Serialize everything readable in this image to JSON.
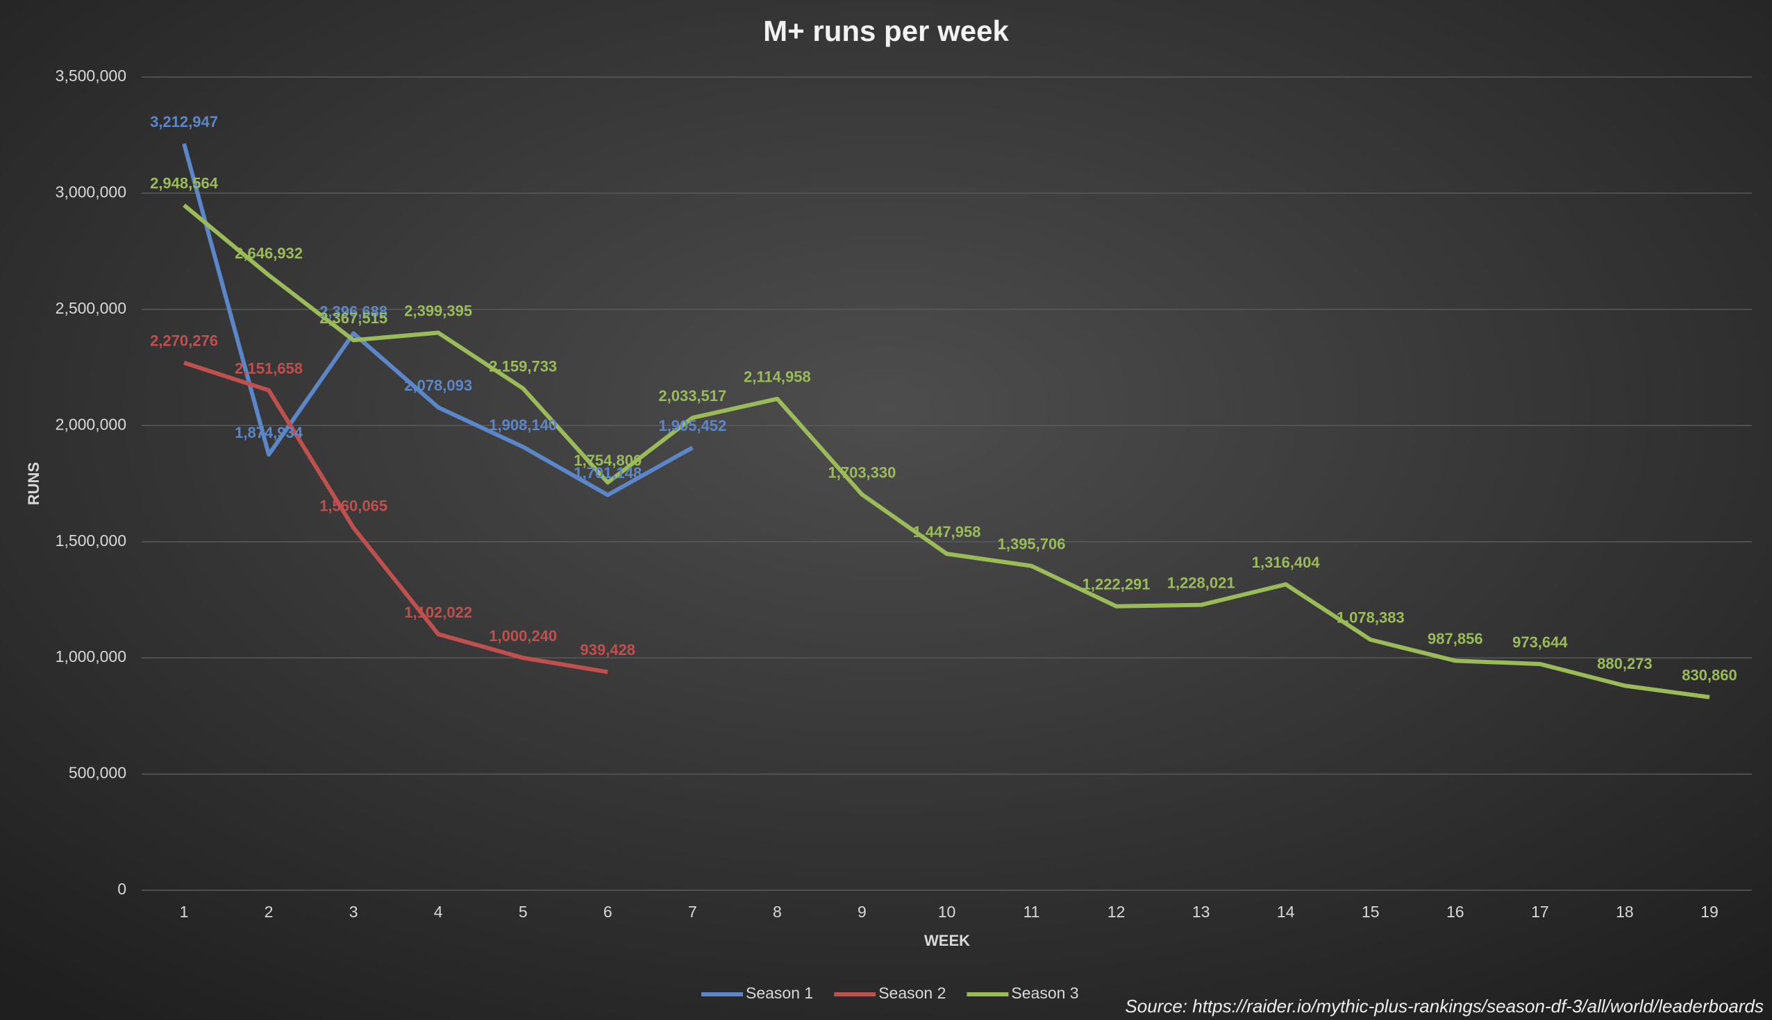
{
  "chart_data": {
    "type": "line",
    "title": "M+ runs  per week",
    "x_label": "WEEK",
    "y_label": "RUNS",
    "source": "Source: https://raider.io/mythic-plus-rankings/season-df-3/all/world/leaderboards",
    "categories": [
      "1",
      "2",
      "3",
      "4",
      "5",
      "6",
      "7",
      "8",
      "9",
      "10",
      "11",
      "12",
      "13",
      "14",
      "15",
      "16",
      "17",
      "18",
      "19"
    ],
    "series": [
      {
        "name": "Season 1",
        "color": "#5b87c8",
        "values": [
          3212947,
          1874934,
          2396688,
          2078093,
          1908140,
          1701148,
          1905452,
          null,
          null,
          null,
          null,
          null,
          null,
          null,
          null,
          null,
          null,
          null,
          null
        ],
        "value_labels": [
          "3,212,947",
          "1,874,934",
          "2,396,688",
          "2,078,093",
          "1,908,140",
          "1,701,148",
          "1,905,452",
          null,
          null,
          null,
          null,
          null,
          null,
          null,
          null,
          null,
          null,
          null,
          null
        ]
      },
      {
        "name": "Season 2",
        "color": "#c0504d",
        "values": [
          2270276,
          2151658,
          1560065,
          1102022,
          1000240,
          939428,
          null,
          null,
          null,
          null,
          null,
          null,
          null,
          null,
          null,
          null,
          null,
          null,
          null
        ],
        "value_labels": [
          "2,270,276",
          "2,151,658",
          "1,560,065",
          "1,102,022",
          "1,000,240",
          "939,428",
          null,
          null,
          null,
          null,
          null,
          null,
          null,
          null,
          null,
          null,
          null,
          null,
          null
        ]
      },
      {
        "name": "Season 3",
        "color": "#9bbb59",
        "values": [
          2948564,
          2646932,
          2367515,
          2399395,
          2159733,
          1754800,
          2033517,
          2114958,
          1703330,
          1447958,
          1395706,
          1222291,
          1228021,
          1316404,
          1078383,
          987856,
          973644,
          880273,
          830860
        ],
        "value_labels": [
          "2,948,564",
          "2,646,932",
          "2,367,515",
          "2,399,395",
          "2,159,733",
          "1,754,800",
          "2,033,517",
          "2,114,958",
          "1,703,330",
          "1,447,958",
          "1,395,706",
          "1,222,291",
          "1,228,021",
          "1,316,404",
          "1,078,383",
          "987,856",
          "973,644",
          "880,273",
          "830,860"
        ]
      }
    ],
    "ylim": [
      0,
      3500000
    ],
    "yticks": [
      0,
      {
        "value": 500000,
        "label": "500,000"
      },
      {
        "value": 1000000,
        "label": "1,000,000"
      },
      {
        "value": 1500000,
        "label": "1,500,000"
      },
      {
        "value": 2000000,
        "label": "2,000,000"
      },
      {
        "value": 2500000,
        "label": "2,500,000"
      },
      {
        "value": 3000000,
        "label": "3,000,000"
      },
      {
        "value": 3500000,
        "label": "3,500,000"
      }
    ],
    "grid": true,
    "legend": "bottom"
  }
}
